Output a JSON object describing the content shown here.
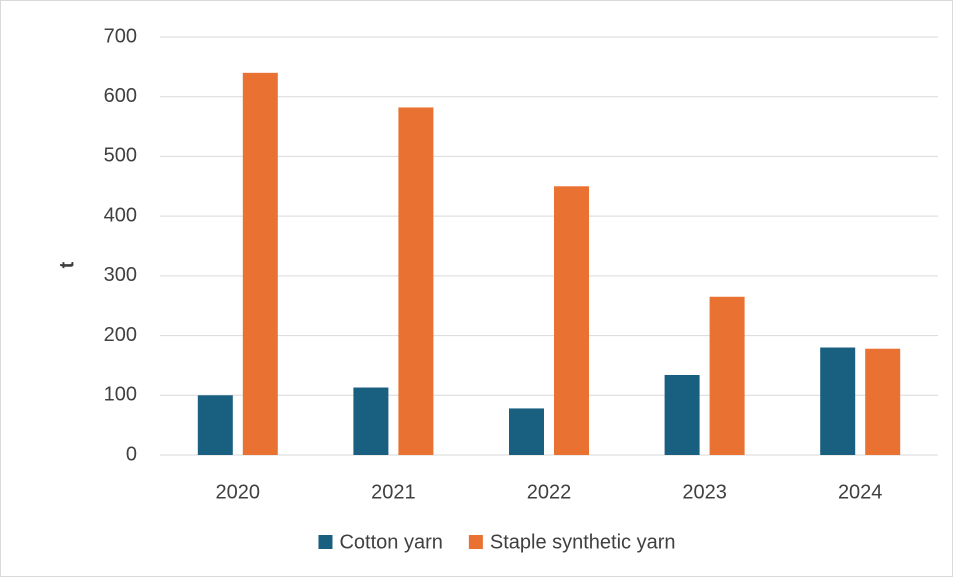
{
  "chart_data": {
    "type": "bar",
    "y_label": "t",
    "categories": [
      "2020",
      "2021",
      "2022",
      "2023",
      "2024"
    ],
    "series": [
      {
        "name": "Cotton yarn",
        "color": "#195f80",
        "values": [
          100,
          113,
          78,
          134,
          180
        ]
      },
      {
        "name": "Staple synthetic yarn",
        "color": "#e97132",
        "values": [
          640,
          582,
          450,
          265,
          178
        ]
      }
    ],
    "ylim": [
      0,
      700
    ],
    "yticks": [
      0,
      100,
      200,
      300,
      400,
      500,
      600,
      700
    ],
    "grid": true,
    "legend": "bottom"
  }
}
